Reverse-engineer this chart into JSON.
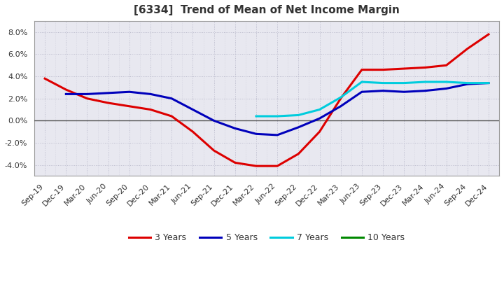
{
  "title": "[6334]  Trend of Mean of Net Income Margin",
  "ylim": [
    -0.05,
    0.09
  ],
  "yticks": [
    -0.04,
    -0.02,
    0.0,
    0.02,
    0.04,
    0.06,
    0.08
  ],
  "background_color": "#ffffff",
  "plot_bg_color": "#e8e8f0",
  "grid_color": "#bbbbcc",
  "series": {
    "3 Years": {
      "color": "#dd0000",
      "x": [
        0,
        1,
        2,
        3,
        4,
        5,
        6,
        7,
        8,
        9,
        10,
        11,
        12,
        13,
        14,
        15,
        16,
        17,
        18,
        19,
        20,
        21
      ],
      "y": [
        0.038,
        0.028,
        0.02,
        0.016,
        0.013,
        0.01,
        0.004,
        -0.01,
        -0.027,
        -0.038,
        -0.041,
        -0.041,
        -0.03,
        -0.01,
        0.02,
        0.046,
        0.046,
        0.047,
        0.048,
        0.05,
        0.065,
        0.078
      ]
    },
    "5 Years": {
      "color": "#0000bb",
      "x": [
        1,
        2,
        3,
        4,
        5,
        6,
        7,
        8,
        9,
        10,
        11,
        12,
        13,
        14,
        15,
        16,
        17,
        18,
        19,
        20,
        21
      ],
      "y": [
        0.024,
        0.024,
        0.025,
        0.026,
        0.024,
        0.02,
        0.01,
        0.0,
        -0.007,
        -0.012,
        -0.013,
        -0.006,
        0.002,
        0.013,
        0.026,
        0.027,
        0.026,
        0.027,
        0.029,
        0.033,
        0.034
      ]
    },
    "7 Years": {
      "color": "#00ccdd",
      "x": [
        10,
        11,
        12,
        13,
        14,
        15,
        16,
        17,
        18,
        19,
        20,
        21
      ],
      "y": [
        0.004,
        0.004,
        0.005,
        0.01,
        0.021,
        0.035,
        0.034,
        0.034,
        0.035,
        0.035,
        0.034,
        0.034
      ]
    },
    "10 Years": {
      "color": "#008800",
      "x": [],
      "y": []
    }
  },
  "x_labels": [
    "Sep-19",
    "Dec-19",
    "Mar-20",
    "Jun-20",
    "Sep-20",
    "Dec-20",
    "Mar-21",
    "Jun-21",
    "Sep-21",
    "Dec-21",
    "Mar-22",
    "Jun-22",
    "Sep-22",
    "Dec-22",
    "Mar-23",
    "Jun-23",
    "Sep-23",
    "Dec-23",
    "Mar-24",
    "Jun-24",
    "Sep-24",
    "Dec-24"
  ],
  "legend_entries": [
    "3 Years",
    "5 Years",
    "7 Years",
    "10 Years"
  ],
  "legend_colors": [
    "#dd0000",
    "#0000bb",
    "#00ccdd",
    "#008800"
  ],
  "title_color": "#333333",
  "title_fontsize": 11,
  "tick_fontsize": 8,
  "linewidth": 2.2
}
